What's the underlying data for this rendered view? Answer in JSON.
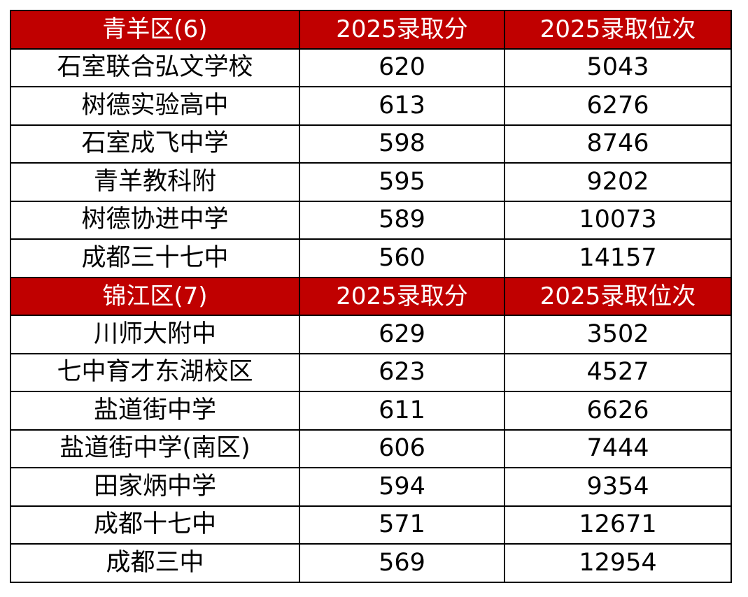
{
  "sections": [
    {
      "district": "青羊区(6)",
      "col_score": "2025录取分",
      "col_rank": "2025录取位次",
      "rows": [
        {
          "school": "石室联合弘文学校",
          "score": "620",
          "rank": "5043"
        },
        {
          "school": "树德实验高中",
          "score": "613",
          "rank": "6276"
        },
        {
          "school": "石室成飞中学",
          "score": "598",
          "rank": "8746"
        },
        {
          "school": "青羊教科附",
          "score": "595",
          "rank": "9202"
        },
        {
          "school": "树德协进中学",
          "score": "589",
          "rank": "10073"
        },
        {
          "school": "成都三十七中",
          "score": "560",
          "rank": "14157"
        }
      ]
    },
    {
      "district": "锦江区(7)",
      "col_score": "2025录取分",
      "col_rank": "2025录取位次",
      "rows": [
        {
          "school": "川师大附中",
          "score": "629",
          "rank": "3502"
        },
        {
          "school": "七中育才东湖校区",
          "score": "623",
          "rank": "4527"
        },
        {
          "school": "盐道街中学",
          "score": "611",
          "rank": "6626"
        },
        {
          "school": "盐道街中学(南区)",
          "score": "606",
          "rank": "7444"
        },
        {
          "school": "田家炳中学",
          "score": "594",
          "rank": "9354"
        },
        {
          "school": "成都十七中",
          "score": "571",
          "rank": "12671"
        },
        {
          "school": "成都三中",
          "score": "569",
          "rank": "12954"
        }
      ]
    }
  ],
  "colors": {
    "header_bg": "#c00000",
    "header_text": "#ffffff",
    "border": "#000000"
  }
}
